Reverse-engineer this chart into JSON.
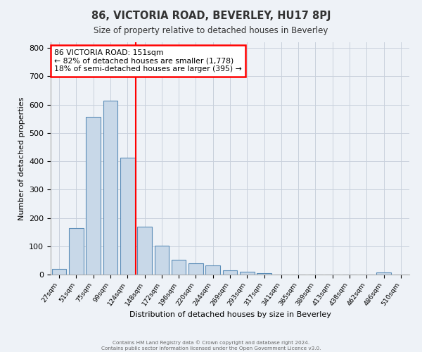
{
  "title": "86, VICTORIA ROAD, BEVERLEY, HU17 8PJ",
  "subtitle": "Size of property relative to detached houses in Beverley",
  "xlabel": "Distribution of detached houses by size in Beverley",
  "ylabel": "Number of detached properties",
  "bar_labels": [
    "27sqm",
    "51sqm",
    "75sqm",
    "99sqm",
    "124sqm",
    "148sqm",
    "172sqm",
    "196sqm",
    "220sqm",
    "244sqm",
    "269sqm",
    "293sqm",
    "317sqm",
    "341sqm",
    "365sqm",
    "389sqm",
    "413sqm",
    "438sqm",
    "462sqm",
    "486sqm",
    "510sqm"
  ],
  "bar_values": [
    20,
    165,
    557,
    614,
    413,
    170,
    103,
    51,
    40,
    32,
    15,
    10,
    5,
    0,
    0,
    0,
    0,
    0,
    0,
    8,
    0
  ],
  "bar_color": "#c8d8e8",
  "bar_edge_color": "#5b8db8",
  "vline_color": "red",
  "annotation_title": "86 VICTORIA ROAD: 151sqm",
  "annotation_line1": "← 82% of detached houses are smaller (1,778)",
  "annotation_line2": "18% of semi-detached houses are larger (395) →",
  "annotation_box_color": "white",
  "annotation_box_edge": "red",
  "ylim": [
    0,
    820
  ],
  "yticks": [
    0,
    100,
    200,
    300,
    400,
    500,
    600,
    700,
    800
  ],
  "footer1": "Contains HM Land Registry data © Crown copyright and database right 2024.",
  "footer2": "Contains public sector information licensed under the Open Government Licence v3.0.",
  "bg_color": "#eef2f7",
  "grid_color": "#c8d0dc"
}
